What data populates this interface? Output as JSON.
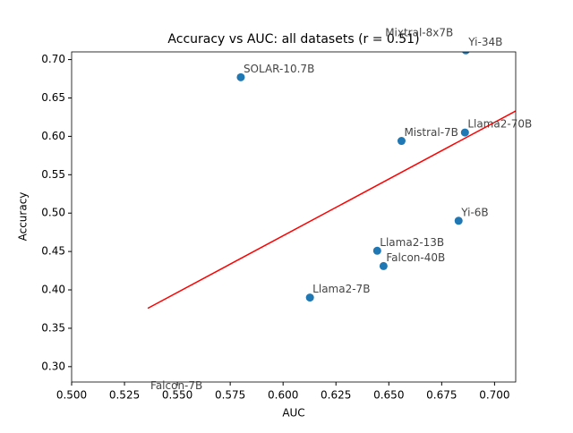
{
  "chart_data": {
    "type": "scatter",
    "title": "Accuracy vs AUC: all datasets (r = 0.51)",
    "x_label": "AUC",
    "y_label": "Accuracy",
    "xlim": [
      0.5,
      0.71
    ],
    "ylim": [
      0.28,
      0.71
    ],
    "xticks": [
      {
        "value": 0.5,
        "label": "0.500"
      },
      {
        "value": 0.525,
        "label": "0.525"
      },
      {
        "value": 0.55,
        "label": "0.550"
      },
      {
        "value": 0.575,
        "label": "0.575"
      },
      {
        "value": 0.6,
        "label": "0.600"
      },
      {
        "value": 0.625,
        "label": "0.625"
      },
      {
        "value": 0.65,
        "label": "0.650"
      },
      {
        "value": 0.675,
        "label": "0.675"
      },
      {
        "value": 0.7,
        "label": "0.700"
      }
    ],
    "yticks": [
      {
        "value": 0.3,
        "label": "0.30"
      },
      {
        "value": 0.35,
        "label": "0.35"
      },
      {
        "value": 0.4,
        "label": "0.40"
      },
      {
        "value": 0.45,
        "label": "0.45"
      },
      {
        "value": 0.5,
        "label": "0.50"
      },
      {
        "value": 0.55,
        "label": "0.55"
      },
      {
        "value": 0.6,
        "label": "0.60"
      },
      {
        "value": 0.65,
        "label": "0.65"
      },
      {
        "value": 0.7,
        "label": "0.70"
      }
    ],
    "color": "#1f77b4",
    "labels": [
      "SOLAR-10.7B",
      "Mistral-7B",
      "Yi-6B",
      "Llama2-13B",
      "Falcon-40B",
      "Llama2-7B",
      "Yi-34B",
      "Mixtral-8x7B",
      "Llama2-70B",
      "Falcon-7B"
    ],
    "x": [
      0.58,
      0.656,
      0.683,
      0.6445,
      0.6475,
      0.6127,
      0.6864,
      0.647,
      0.686,
      0.536
    ],
    "values": [
      0.677,
      0.594,
      0.49,
      0.451,
      0.431,
      0.39,
      0.712,
      0.724,
      0.605,
      0.264
    ],
    "fit_line": {
      "color": "#ff0000",
      "x": [
        0.536,
        0.71
      ],
      "values": [
        0.376,
        0.633
      ]
    }
  }
}
